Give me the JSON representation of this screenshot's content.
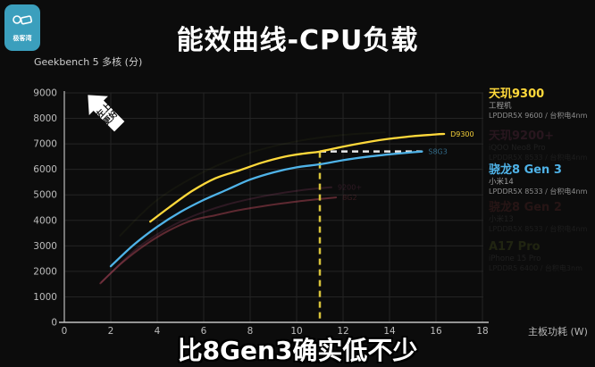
{
  "header": {
    "title": "能效曲线-CPU负载",
    "logo_text": "极客湾"
  },
  "chart_data": {
    "type": "line",
    "title": "能效曲线-CPU负载",
    "xlabel": "主板功耗 (W)",
    "ylabel": "Geekbench 5 多核 (分)",
    "xlim": [
      0,
      18
    ],
    "ylim": [
      0,
      9000
    ],
    "x_ticks": [
      0,
      2,
      4,
      6,
      8,
      10,
      12,
      14,
      16,
      18
    ],
    "y_ticks": [
      0,
      1000,
      2000,
      3000,
      4000,
      5000,
      6000,
      7000,
      8000,
      9000
    ],
    "grid": true,
    "legend_position": "right",
    "series": [
      {
        "name": "A17 Pro",
        "end_label": "",
        "color": "#a8c838",
        "dimmed": true,
        "curve_opacity": 0.05,
        "label_opacity": 0,
        "points": [
          [
            2.4,
            3400
          ],
          [
            4,
            4800
          ],
          [
            6,
            5900
          ],
          [
            8,
            6650
          ],
          [
            10,
            7100
          ],
          [
            12,
            7350
          ],
          [
            13.8,
            7450
          ]
        ]
      },
      {
        "name": "天玑9200+",
        "end_label": "9200+",
        "color": "#e05c9a",
        "dimmed": true,
        "curve_opacity": 0.16,
        "label_opacity": 0.16,
        "points": [
          [
            1.6,
            1580
          ],
          [
            3,
            2800
          ],
          [
            4,
            3450
          ],
          [
            5,
            3950
          ],
          [
            6,
            4330
          ],
          [
            7,
            4620
          ],
          [
            8,
            4840
          ],
          [
            9,
            5020
          ],
          [
            10,
            5160
          ],
          [
            11,
            5260
          ],
          [
            11.5,
            5300
          ]
        ]
      },
      {
        "name": "骁龙8 Gen 2",
        "end_label": "8G2",
        "color": "#b04555",
        "dimmed": true,
        "curve_opacity": 0.5,
        "label_opacity": 0.25,
        "points": [
          [
            1.55,
            1530
          ],
          [
            2.5,
            2350
          ],
          [
            3.5,
            3050
          ],
          [
            4.5,
            3600
          ],
          [
            5.5,
            4000
          ],
          [
            6.5,
            4200
          ],
          [
            7.5,
            4400
          ],
          [
            8.5,
            4550
          ],
          [
            9.5,
            4680
          ],
          [
            10.5,
            4790
          ],
          [
            11.7,
            4900
          ]
        ]
      },
      {
        "name": "骁龙8 Gen 3",
        "end_label": "S8G3",
        "color": "#4fb3e8",
        "dimmed": false,
        "curve_opacity": 1,
        "label_opacity": 0.55,
        "points": [
          [
            2,
            2200
          ],
          [
            3,
            3050
          ],
          [
            4,
            3750
          ],
          [
            5,
            4330
          ],
          [
            6,
            4800
          ],
          [
            7,
            5200
          ],
          [
            8,
            5600
          ],
          [
            9,
            5880
          ],
          [
            10,
            6080
          ],
          [
            11,
            6200
          ],
          [
            12,
            6360
          ],
          [
            13,
            6490
          ],
          [
            14,
            6590
          ],
          [
            15,
            6670
          ],
          [
            15.4,
            6700
          ]
        ]
      },
      {
        "name": "天玑9300",
        "end_label": "D9300",
        "color": "#ffd93b",
        "dimmed": false,
        "curve_opacity": 1,
        "label_opacity": 0.95,
        "points": [
          [
            3.7,
            3950
          ],
          [
            4.5,
            4500
          ],
          [
            5.5,
            5150
          ],
          [
            6.5,
            5650
          ],
          [
            7.5,
            5950
          ],
          [
            8.5,
            6260
          ],
          [
            9.5,
            6500
          ],
          [
            10.3,
            6620
          ],
          [
            11,
            6700
          ],
          [
            12,
            6890
          ],
          [
            13,
            7060
          ],
          [
            14,
            7200
          ],
          [
            15,
            7300
          ],
          [
            16,
            7370
          ],
          [
            16.35,
            7390
          ]
        ]
      }
    ],
    "annotations": {
      "better_direction_line1": "左上",
      "better_direction_line2": "更好",
      "dashed_vertical": {
        "x": 11,
        "y_from": 6700,
        "y_to": 0,
        "color": "#d8c33a"
      },
      "dashed_horizontal": {
        "y": 6700,
        "x_from": 11,
        "x_to": 15.4,
        "color": "#e8e8e8"
      }
    }
  },
  "legend": {
    "entries": [
      {
        "name": "天玑9300",
        "sub1": "工程机",
        "sub2": "LPDDR5X 9600 / 台积电4nm",
        "color": "#ffd93b",
        "dimmed": false
      },
      {
        "name": "天玑9200+",
        "sub1": "iQOO Neo8 Pro",
        "sub2": "LPDDR5X 8533 / 台积电4nm",
        "color": "#e05c9a",
        "dimmed": true
      },
      {
        "name": "骁龙8 Gen 3",
        "sub1": "小米14",
        "sub2": "LPDDR5X 8533 / 台积电4nm",
        "color": "#4fb3e8",
        "dimmed": false
      },
      {
        "name": "骁龙8 Gen 2",
        "sub1": "小米13",
        "sub2": "LPDDR5X 8533 / 台积电4nm",
        "color": "#d05050",
        "dimmed": true
      },
      {
        "name": "A17 Pro",
        "sub1": "iPhone 15 Pro",
        "sub2": "LPDDR5 6400 / 台积电3nm",
        "color": "#a8c838",
        "dimmed": true
      }
    ]
  },
  "subtitle": "比8Gen3确实低不少"
}
